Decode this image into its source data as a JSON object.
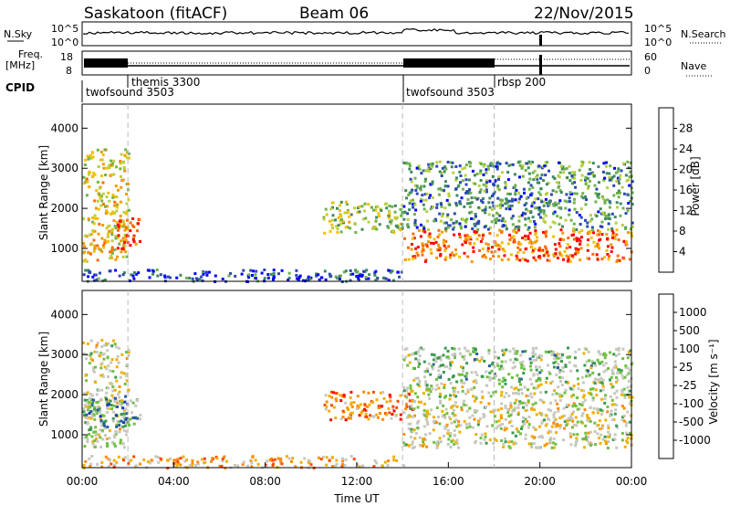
{
  "header": {
    "station": "Saskatoon (fitACF)",
    "beam": "Beam 06",
    "date": "22/Nov/2015"
  },
  "aux_panels": {
    "nsky_label": "N.Sky",
    "nsky_ticks": [
      "10^5",
      "10^0"
    ],
    "nsearch_label": "N.Search",
    "nsearch_ticks": [
      "10^5",
      "10^0"
    ],
    "freq_label_1": "Freq.",
    "freq_label_2": "[MHz]",
    "freq_ticks": [
      "18",
      "8"
    ],
    "nave_label": "Nave",
    "nave_ticks": [
      "60",
      "0"
    ],
    "cpid_label": "CPID"
  },
  "cpid_programs": [
    {
      "name": "twofsound 3503",
      "start_hour": 0.0
    },
    {
      "name": "themis 3300",
      "start_hour": 2.0
    },
    {
      "name": "twofsound 3503",
      "start_hour": 14.0
    },
    {
      "name": "rbsp 200",
      "start_hour": 18.0
    }
  ],
  "chart_data": [
    {
      "type": "heatmap",
      "panel": "power",
      "ylabel": "Slant Range [km]",
      "yticks": [
        1000,
        2000,
        3000,
        4000
      ],
      "ylim": [
        180,
        4600
      ],
      "xlim_hours": [
        0,
        24
      ],
      "colorbar_label": "Power [dB]",
      "colorbar_ticks": [
        "4",
        "8",
        "12",
        "16",
        "20",
        "24",
        "28"
      ],
      "colors": [
        "#0000ff",
        "#2a48b4",
        "#3e8a60",
        "#6fb24a",
        "#b8d040",
        "#f0c000",
        "#f39a00",
        "#ff6a00",
        "#ff0000"
      ],
      "regions": [
        {
          "t": [
            0.0,
            2.0
          ],
          "r": [
            700,
            3500
          ],
          "level": 0.6
        },
        {
          "t": [
            1.5,
            2.5
          ],
          "r": [
            1000,
            1800
          ],
          "level": 0.9
        },
        {
          "t": [
            0.0,
            14.0
          ],
          "r": [
            200,
            500
          ],
          "level": 0.15
        },
        {
          "t": [
            10.5,
            14.0
          ],
          "r": [
            1400,
            2200
          ],
          "level": 0.45
        },
        {
          "t": [
            14.0,
            24.0
          ],
          "r": [
            700,
            1500
          ],
          "level": 0.8
        },
        {
          "t": [
            14.0,
            24.0
          ],
          "r": [
            1500,
            3200
          ],
          "level": 0.3
        }
      ]
    },
    {
      "type": "heatmap",
      "panel": "velocity",
      "ylabel": "Slant Range [km]",
      "yticks": [
        1000,
        2000,
        3000,
        4000
      ],
      "ylim": [
        180,
        4600
      ],
      "xlim_hours": [
        0,
        24
      ],
      "xticks": [
        "00:00",
        "04:00",
        "08:00",
        "12:00",
        "16:00",
        "20:00",
        "00:00"
      ],
      "xlabel": "Time UT",
      "colorbar_label": "Velocity [m s⁻¹]",
      "colorbar_ticks": [
        "-1000",
        "-500",
        "-100",
        "-25",
        "25",
        "100",
        "500",
        "1000"
      ],
      "colors": [
        "#ff0000",
        "#ff4a00",
        "#ff8c00",
        "#f0b000",
        "#c8c8c0",
        "#c8c8c0",
        "#6fc040",
        "#3a9a50",
        "#2a5aa0",
        "#1a3ab0"
      ],
      "regions": [
        {
          "t": [
            0.0,
            2.0
          ],
          "r": [
            700,
            3400
          ],
          "level": 0.5
        },
        {
          "t": [
            0.0,
            2.5
          ],
          "r": [
            1200,
            2000
          ],
          "level": 0.75
        },
        {
          "t": [
            0.0,
            14.0
          ],
          "r": [
            200,
            500
          ],
          "level": 0.35
        },
        {
          "t": [
            10.5,
            14.5
          ],
          "r": [
            1400,
            2100
          ],
          "level": 0.25
        },
        {
          "t": [
            14.0,
            24.0
          ],
          "r": [
            700,
            2400
          ],
          "level": 0.5
        },
        {
          "t": [
            14.0,
            24.0
          ],
          "r": [
            2400,
            3200
          ],
          "level": 0.6
        }
      ]
    }
  ]
}
